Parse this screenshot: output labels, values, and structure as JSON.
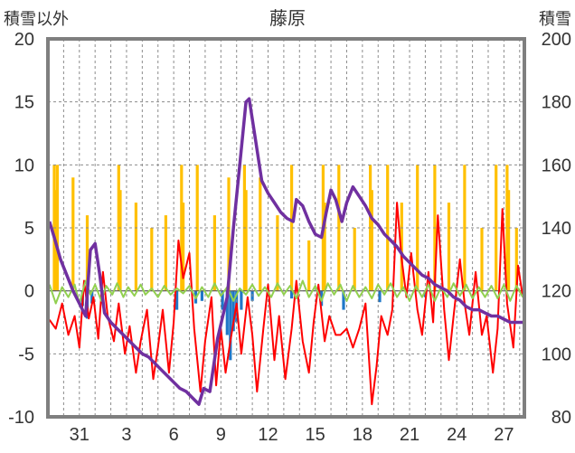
{
  "chart_data": {
    "type": "line",
    "title": "藤原",
    "ylabel_left": "積雪以外",
    "ylabel_right": "積雪",
    "ylim_left": [
      -10,
      20
    ],
    "ylim_right": [
      80,
      200
    ],
    "yticks_left": [
      -10,
      -5,
      0,
      5,
      10,
      15,
      20
    ],
    "yticks_right": [
      80,
      100,
      120,
      140,
      160,
      180,
      200
    ],
    "xlim": [
      29,
      59.3
    ],
    "xticks": [
      {
        "x": 31,
        "label": "31"
      },
      {
        "x": 34,
        "label": "3"
      },
      {
        "x": 37,
        "label": "6"
      },
      {
        "x": 40,
        "label": "9"
      },
      {
        "x": 43,
        "label": "12"
      },
      {
        "x": 46,
        "label": "15"
      },
      {
        "x": 49,
        "label": "18"
      },
      {
        "x": 52,
        "label": "21"
      },
      {
        "x": 55,
        "label": "24"
      },
      {
        "x": 58,
        "label": "27"
      }
    ],
    "grid": true,
    "series": [
      {
        "color": "#ffc000",
        "kind": "bar-left-axis",
        "points": [
          [
            29.4,
            10
          ],
          [
            29.5,
            8
          ],
          [
            29.6,
            10
          ],
          [
            30.6,
            9
          ],
          [
            31.5,
            6
          ],
          [
            33.5,
            10
          ],
          [
            33.6,
            8
          ],
          [
            34.6,
            7
          ],
          [
            35.6,
            5
          ],
          [
            36.5,
            6
          ],
          [
            37.5,
            10
          ],
          [
            37.6,
            7
          ],
          [
            38.5,
            10
          ],
          [
            39.6,
            6
          ],
          [
            40.5,
            9
          ],
          [
            41.5,
            10
          ],
          [
            41.6,
            8
          ],
          [
            42.5,
            9
          ],
          [
            43.6,
            6
          ],
          [
            44.5,
            10
          ],
          [
            45.6,
            4
          ],
          [
            46.5,
            10
          ],
          [
            46.6,
            7
          ],
          [
            47.5,
            10
          ],
          [
            48.5,
            5
          ],
          [
            49.5,
            10
          ],
          [
            49.6,
            8
          ],
          [
            50.6,
            10
          ],
          [
            51.5,
            7
          ],
          [
            52.5,
            10
          ],
          [
            53.6,
            10
          ],
          [
            54.5,
            7
          ],
          [
            55.5,
            10
          ],
          [
            56.6,
            5
          ],
          [
            57.5,
            10
          ],
          [
            58.2,
            10
          ],
          [
            58.3,
            8
          ],
          [
            58.8,
            5
          ]
        ]
      },
      {
        "color": "#1f77c8",
        "kind": "bar-left-axis",
        "points": [
          [
            31.2,
            -1.2
          ],
          [
            31.5,
            -2.2
          ],
          [
            31.8,
            -1.0
          ],
          [
            37.2,
            -1.5
          ],
          [
            38.4,
            -1.0
          ],
          [
            38.8,
            -0.8
          ],
          [
            40.1,
            -1.5
          ],
          [
            40.4,
            -3.5
          ],
          [
            40.6,
            -5.5
          ],
          [
            40.8,
            -3.2
          ],
          [
            41.0,
            -2.5
          ],
          [
            41.3,
            -1.5
          ],
          [
            42.0,
            -0.8
          ],
          [
            44.5,
            -0.6
          ],
          [
            46.4,
            -1.2
          ],
          [
            47.8,
            -1.5
          ],
          [
            50.1,
            -0.9
          ],
          [
            53.0,
            -0.5
          ]
        ]
      },
      {
        "color": "#ff0000",
        "kind": "line-left-axis",
        "points": [
          [
            29.1,
            -2.3
          ],
          [
            29.5,
            -3.0
          ],
          [
            29.9,
            -1.0
          ],
          [
            30.3,
            -3.5
          ],
          [
            30.7,
            -2.0
          ],
          [
            31.0,
            -4.5
          ],
          [
            31.3,
            0.8
          ],
          [
            31.6,
            -2.2
          ],
          [
            31.9,
            -0.5
          ],
          [
            32.2,
            -3.8
          ],
          [
            32.5,
            1.5
          ],
          [
            32.8,
            -2.0
          ],
          [
            33.2,
            -4.0
          ],
          [
            33.5,
            -1.0
          ],
          [
            33.9,
            -5.0
          ],
          [
            34.2,
            -2.8
          ],
          [
            34.6,
            -6.5
          ],
          [
            34.9,
            -4.0
          ],
          [
            35.3,
            -1.5
          ],
          [
            35.7,
            -7.0
          ],
          [
            36.0,
            -4.5
          ],
          [
            36.3,
            -1.5
          ],
          [
            36.7,
            -6.5
          ],
          [
            37.0,
            -2.5
          ],
          [
            37.3,
            4.0
          ],
          [
            37.6,
            1.0
          ],
          [
            38.0,
            3.0
          ],
          [
            38.3,
            -3.0
          ],
          [
            38.7,
            -8.0
          ],
          [
            39.0,
            -4.0
          ],
          [
            39.4,
            -0.5
          ],
          [
            39.7,
            -7.5
          ],
          [
            40.0,
            -3.0
          ],
          [
            40.3,
            -6.5
          ],
          [
            40.6,
            -4.0
          ],
          [
            41.0,
            -1.0
          ],
          [
            41.3,
            -5.0
          ],
          [
            41.7,
            -0.5
          ],
          [
            42.0,
            -3.5
          ],
          [
            42.3,
            -8.0
          ],
          [
            42.7,
            -3.0
          ],
          [
            43.0,
            0.5
          ],
          [
            43.4,
            -5.5
          ],
          [
            43.7,
            -2.0
          ],
          [
            44.1,
            -7.0
          ],
          [
            44.5,
            -3.0
          ],
          [
            44.8,
            0.8
          ],
          [
            45.2,
            -4.0
          ],
          [
            45.6,
            -6.5
          ],
          [
            45.9,
            -2.5
          ],
          [
            46.2,
            0.5
          ],
          [
            46.6,
            -4.0
          ],
          [
            46.9,
            -2.0
          ],
          [
            47.3,
            -3.5
          ],
          [
            47.6,
            -3.5
          ],
          [
            48.0,
            -3.0
          ],
          [
            48.4,
            -4.5
          ],
          [
            48.8,
            -3.0
          ],
          [
            49.2,
            -1.0
          ],
          [
            49.6,
            -9.0
          ],
          [
            49.9,
            -6.0
          ],
          [
            50.2,
            -2.0
          ],
          [
            50.6,
            -3.5
          ],
          [
            50.9,
            -1.5
          ],
          [
            51.2,
            7.0
          ],
          [
            51.5,
            2.5
          ],
          [
            51.8,
            -0.5
          ],
          [
            52.1,
            3.0
          ],
          [
            52.5,
            -1.5
          ],
          [
            52.8,
            -3.5
          ],
          [
            53.2,
            1.5
          ],
          [
            53.5,
            -2.5
          ],
          [
            53.8,
            6.0
          ],
          [
            54.2,
            -1.5
          ],
          [
            54.5,
            -5.5
          ],
          [
            54.8,
            -2.0
          ],
          [
            55.2,
            2.5
          ],
          [
            55.5,
            -1.0
          ],
          [
            55.8,
            -3.5
          ],
          [
            56.2,
            1.5
          ],
          [
            56.6,
            -3.5
          ],
          [
            56.9,
            -2.0
          ],
          [
            57.3,
            -6.5
          ],
          [
            57.6,
            -3.0
          ],
          [
            57.9,
            6.5
          ],
          [
            58.2,
            -1.0
          ],
          [
            58.6,
            -4.5
          ],
          [
            58.9,
            2.0
          ],
          [
            59.2,
            -0.5
          ]
        ]
      },
      {
        "color": "#92d050",
        "kind": "line-left-axis",
        "points": [
          [
            29.1,
            0.5
          ],
          [
            29.5,
            -1.0
          ],
          [
            29.9,
            0.3
          ],
          [
            30.3,
            -0.5
          ],
          [
            30.7,
            0.5
          ],
          [
            31.0,
            -1.0
          ],
          [
            31.4,
            0.8
          ],
          [
            31.7,
            -0.3
          ],
          [
            32.0,
            0.5
          ],
          [
            32.4,
            -0.8
          ],
          [
            32.7,
            0.4
          ],
          [
            33.1,
            -0.3
          ],
          [
            33.4,
            0.6
          ],
          [
            33.8,
            -0.5
          ],
          [
            34.1,
            0.3
          ],
          [
            34.5,
            -0.4
          ],
          [
            34.9,
            0.5
          ],
          [
            35.2,
            -0.3
          ],
          [
            35.6,
            0.2
          ],
          [
            36.0,
            -0.5
          ],
          [
            36.4,
            0.4
          ],
          [
            36.8,
            -0.3
          ],
          [
            37.2,
            0.2
          ],
          [
            37.6,
            -0.2
          ],
          [
            38.0,
            0.4
          ],
          [
            38.4,
            -0.6
          ],
          [
            38.8,
            0.3
          ],
          [
            39.2,
            -0.5
          ],
          [
            39.6,
            0.6
          ],
          [
            40.0,
            -0.4
          ],
          [
            40.4,
            0.3
          ],
          [
            40.8,
            -0.8
          ],
          [
            41.2,
            0.2
          ],
          [
            41.6,
            -0.3
          ],
          [
            42.0,
            0.5
          ],
          [
            42.4,
            -0.4
          ],
          [
            42.8,
            0.3
          ],
          [
            43.2,
            -0.5
          ],
          [
            43.6,
            0.6
          ],
          [
            44.0,
            -0.3
          ],
          [
            44.4,
            0.4
          ],
          [
            44.8,
            -0.6
          ],
          [
            45.2,
            0.8
          ],
          [
            45.6,
            -0.5
          ],
          [
            46.0,
            0.4
          ],
          [
            46.4,
            -0.8
          ],
          [
            46.8,
            0.6
          ],
          [
            47.2,
            -0.3
          ],
          [
            47.6,
            0.5
          ],
          [
            48.0,
            -0.8
          ],
          [
            48.4,
            0.4
          ],
          [
            48.8,
            -0.5
          ],
          [
            49.2,
            0.3
          ],
          [
            49.6,
            -0.6
          ],
          [
            50.0,
            0.5
          ],
          [
            50.4,
            -0.3
          ],
          [
            50.8,
            0.6
          ],
          [
            51.2,
            -0.5
          ],
          [
            51.6,
            0.3
          ],
          [
            52.0,
            -0.8
          ],
          [
            52.4,
            0.4
          ],
          [
            52.8,
            -0.5
          ],
          [
            53.2,
            0.5
          ],
          [
            53.6,
            -0.8
          ],
          [
            54.0,
            0.3
          ],
          [
            54.4,
            -0.5
          ],
          [
            54.8,
            0.6
          ],
          [
            55.2,
            -0.4
          ],
          [
            55.6,
            0.5
          ],
          [
            56.0,
            -0.6
          ],
          [
            56.4,
            0.3
          ],
          [
            56.8,
            -0.5
          ],
          [
            57.2,
            0.4
          ],
          [
            57.6,
            -0.6
          ],
          [
            58.0,
            0.5
          ],
          [
            58.4,
            -0.8
          ],
          [
            58.8,
            0.4
          ],
          [
            59.2,
            -0.5
          ]
        ]
      },
      {
        "color": "#7030a0",
        "kind": "line-right-axis",
        "points": [
          [
            29.1,
            142
          ],
          [
            29.4,
            137
          ],
          [
            29.8,
            130
          ],
          [
            30.2,
            125
          ],
          [
            30.6,
            120
          ],
          [
            31.0,
            116
          ],
          [
            31.4,
            112
          ],
          [
            31.7,
            133
          ],
          [
            32.0,
            135
          ],
          [
            32.3,
            125
          ],
          [
            32.6,
            113
          ],
          [
            33.0,
            110
          ],
          [
            33.4,
            108
          ],
          [
            33.8,
            106
          ],
          [
            34.2,
            104
          ],
          [
            34.6,
            102
          ],
          [
            35.0,
            100
          ],
          [
            35.4,
            99
          ],
          [
            35.8,
            97
          ],
          [
            36.2,
            95
          ],
          [
            36.6,
            93
          ],
          [
            37.0,
            91
          ],
          [
            37.4,
            89
          ],
          [
            37.8,
            88
          ],
          [
            38.2,
            86
          ],
          [
            38.6,
            84
          ],
          [
            38.9,
            89
          ],
          [
            39.3,
            88
          ],
          [
            39.8,
            105
          ],
          [
            40.4,
            118
          ],
          [
            40.8,
            140
          ],
          [
            41.2,
            160
          ],
          [
            41.6,
            180
          ],
          [
            41.8,
            181
          ],
          [
            42.2,
            168
          ],
          [
            42.6,
            155
          ],
          [
            43.0,
            151
          ],
          [
            43.4,
            148
          ],
          [
            43.8,
            145
          ],
          [
            44.2,
            143
          ],
          [
            44.6,
            142
          ],
          [
            44.8,
            149
          ],
          [
            45.2,
            147
          ],
          [
            45.6,
            142
          ],
          [
            46.0,
            138
          ],
          [
            46.4,
            137
          ],
          [
            46.7,
            145
          ],
          [
            47.0,
            152
          ],
          [
            47.3,
            149
          ],
          [
            47.7,
            142
          ],
          [
            48.0,
            148
          ],
          [
            48.4,
            153
          ],
          [
            48.8,
            150
          ],
          [
            49.2,
            147
          ],
          [
            49.6,
            143
          ],
          [
            50.0,
            141
          ],
          [
            50.4,
            138
          ],
          [
            50.8,
            136
          ],
          [
            51.2,
            134
          ],
          [
            51.6,
            131
          ],
          [
            52.0,
            129
          ],
          [
            52.4,
            127
          ],
          [
            52.8,
            125
          ],
          [
            53.2,
            124
          ],
          [
            53.6,
            122
          ],
          [
            54.0,
            121
          ],
          [
            54.4,
            120
          ],
          [
            54.8,
            118
          ],
          [
            55.2,
            117
          ],
          [
            55.6,
            115
          ],
          [
            56.0,
            114
          ],
          [
            56.4,
            114
          ],
          [
            56.8,
            113
          ],
          [
            57.2,
            112
          ],
          [
            57.6,
            112
          ],
          [
            58.0,
            111
          ],
          [
            58.4,
            110
          ],
          [
            58.8,
            110
          ],
          [
            59.2,
            110
          ]
        ]
      }
    ]
  }
}
